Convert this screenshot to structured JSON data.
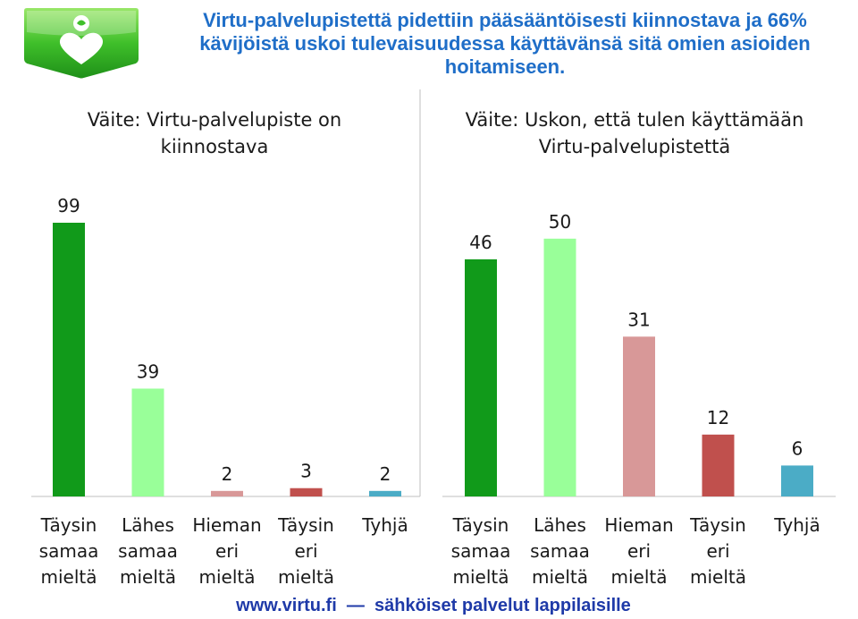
{
  "title": "Virtu-palvelupistettä pidettiin pääsääntöisesti kiinnostava ja 66% kävijöistä uskoi tulevaisuudessa käyttävänsä sitä omien asioiden hoitamiseen.",
  "footer": {
    "site": "www.virtu.fi",
    "tagline": "sähköiset palvelut lappilaisille"
  },
  "colors": {
    "title": "#1f6ec8",
    "footer": "#1f3aa8",
    "axis": "#bfbfbf"
  },
  "chart_data": [
    {
      "type": "bar",
      "title": "Väite: Virtu-palvelupiste on kiinnostava",
      "categories": [
        "Täysin samaa mieltä",
        "Lähes samaa mieltä",
        "Hieman eri mieltä",
        "Täysin eri mieltä",
        "Tyhjä"
      ],
      "values": [
        99,
        39,
        2,
        3,
        2
      ],
      "colors": [
        "#119a1a",
        "#99ff99",
        "#d89898",
        "#c0504d",
        "#4bacc6"
      ],
      "ylim": [
        0,
        110
      ],
      "grid": false,
      "legend": "none"
    },
    {
      "type": "bar",
      "title": "Väite: Uskon, että tulen käyttämään Virtu-palvelupistettä",
      "categories": [
        "Täysin samaa mieltä",
        "Lähes samaa mieltä",
        "Hieman eri mieltä",
        "Täysin eri mieltä",
        "Tyhjä"
      ],
      "values": [
        46,
        50,
        31,
        12,
        6
      ],
      "colors": [
        "#119a1a",
        "#99ff99",
        "#d89898",
        "#c0504d",
        "#4bacc6"
      ],
      "ylim": [
        0,
        55
      ],
      "grid": false,
      "legend": "none"
    }
  ]
}
